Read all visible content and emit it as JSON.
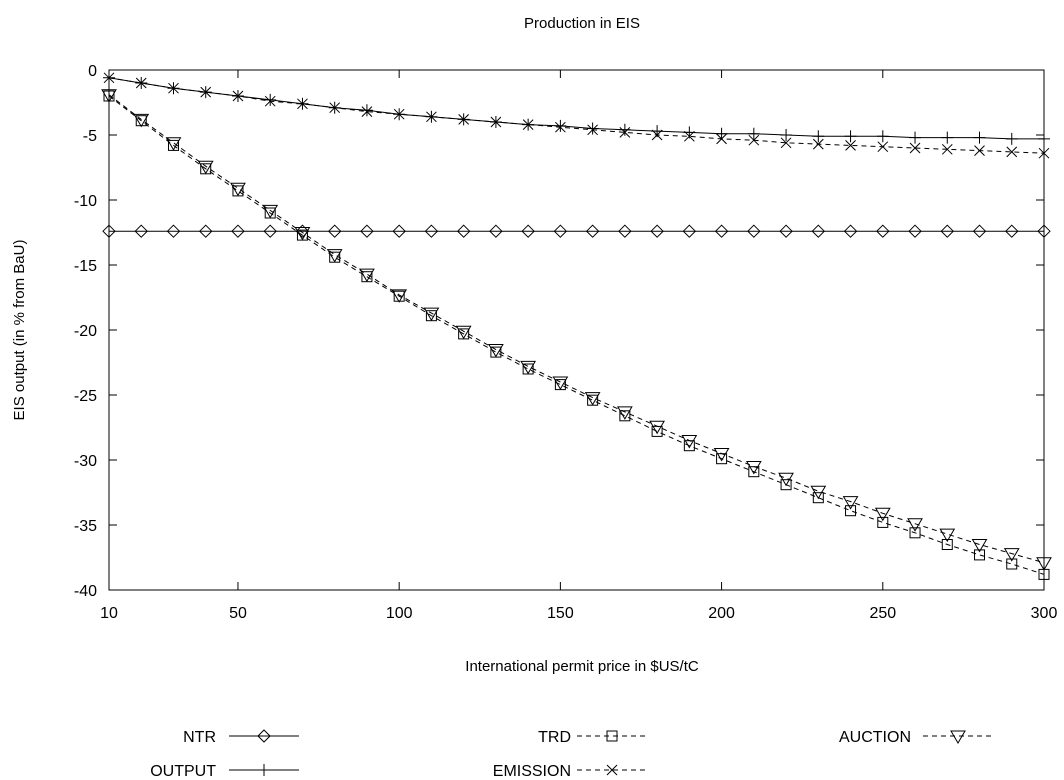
{
  "chart_data": {
    "type": "line",
    "title": "Production in EIS",
    "xlabel": "International permit price in $US/tC",
    "ylabel": "EIS output (in % from BaU)",
    "xlim": [
      10,
      300
    ],
    "ylim": [
      -40,
      0
    ],
    "xticks": [
      10,
      50,
      100,
      150,
      200,
      250,
      300
    ],
    "yticks": [
      0,
      -5,
      -10,
      -15,
      -20,
      -25,
      -30,
      -35,
      -40
    ],
    "x": [
      10,
      20,
      30,
      40,
      50,
      60,
      70,
      80,
      90,
      100,
      110,
      120,
      130,
      140,
      150,
      160,
      170,
      180,
      190,
      200,
      210,
      220,
      230,
      240,
      250,
      260,
      270,
      280,
      290,
      300
    ],
    "series": [
      {
        "name": "NTR",
        "marker": "diamond",
        "dash": "solid",
        "values": [
          -12.4,
          -12.4,
          -12.4,
          -12.4,
          -12.4,
          -12.4,
          -12.4,
          -12.4,
          -12.4,
          -12.4,
          -12.4,
          -12.4,
          -12.4,
          -12.4,
          -12.4,
          -12.4,
          -12.4,
          -12.4,
          -12.4,
          -12.4,
          -12.4,
          -12.4,
          -12.4,
          -12.4,
          -12.4,
          -12.4,
          -12.4,
          -12.4,
          -12.4,
          -12.4
        ]
      },
      {
        "name": "TRD",
        "marker": "square",
        "dash": "dashed",
        "values": [
          -2.0,
          -3.9,
          -5.8,
          -7.6,
          -9.3,
          -11.0,
          -12.7,
          -14.4,
          -15.9,
          -17.4,
          -18.9,
          -20.3,
          -21.7,
          -23.0,
          -24.2,
          -25.4,
          -26.6,
          -27.8,
          -28.9,
          -29.9,
          -30.9,
          -31.9,
          -32.9,
          -33.9,
          -34.8,
          -35.6,
          -36.5,
          -37.3,
          -38.0,
          -38.8
        ]
      },
      {
        "name": "AUCTION",
        "marker": "triangle-down",
        "dash": "dashed",
        "values": [
          -1.9,
          -3.8,
          -5.6,
          -7.4,
          -9.1,
          -10.8,
          -12.5,
          -14.2,
          -15.7,
          -17.3,
          -18.7,
          -20.1,
          -21.5,
          -22.8,
          -24.0,
          -25.2,
          -26.3,
          -27.4,
          -28.5,
          -29.5,
          -30.5,
          -31.4,
          -32.4,
          -33.2,
          -34.1,
          -34.9,
          -35.7,
          -36.5,
          -37.2,
          -37.9
        ]
      },
      {
        "name": "OUTPUT",
        "marker": "plus",
        "dash": "solid",
        "values": [
          -0.6,
          -1.0,
          -1.4,
          -1.7,
          -2.0,
          -2.3,
          -2.6,
          -2.9,
          -3.1,
          -3.4,
          -3.6,
          -3.8,
          -4.0,
          -4.2,
          -4.3,
          -4.5,
          -4.6,
          -4.7,
          -4.8,
          -4.9,
          -4.9,
          -5.0,
          -5.1,
          -5.1,
          -5.1,
          -5.2,
          -5.2,
          -5.2,
          -5.3,
          -5.3
        ]
      },
      {
        "name": "EMISSION",
        "marker": "cross",
        "dash": "dashed",
        "values": [
          -0.6,
          -1.0,
          -1.4,
          -1.7,
          -2.0,
          -2.4,
          -2.6,
          -2.9,
          -3.2,
          -3.4,
          -3.6,
          -3.8,
          -4.0,
          -4.2,
          -4.4,
          -4.6,
          -4.8,
          -5.0,
          -5.1,
          -5.3,
          -5.4,
          -5.6,
          -5.7,
          -5.8,
          -5.9,
          -6.0,
          -6.1,
          -6.2,
          -6.3,
          -6.4
        ]
      }
    ],
    "legend_position": "bottom",
    "grid": false
  }
}
